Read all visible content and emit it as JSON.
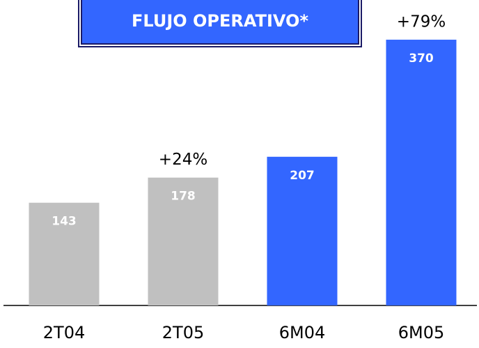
{
  "chart_data": {
    "type": "bar",
    "title": "FLUJO OPERATIVO*",
    "categories": [
      "2T04",
      "2T05",
      "6M04",
      "6M05"
    ],
    "values": [
      143,
      178,
      207,
      370
    ],
    "colors": [
      "#c0c0c0",
      "#c0c0c0",
      "#3366ff",
      "#3366ff"
    ],
    "annotations": [
      {
        "label": "+24%",
        "x": "2T05"
      },
      {
        "label": "+79%",
        "x": "6M05"
      }
    ]
  }
}
